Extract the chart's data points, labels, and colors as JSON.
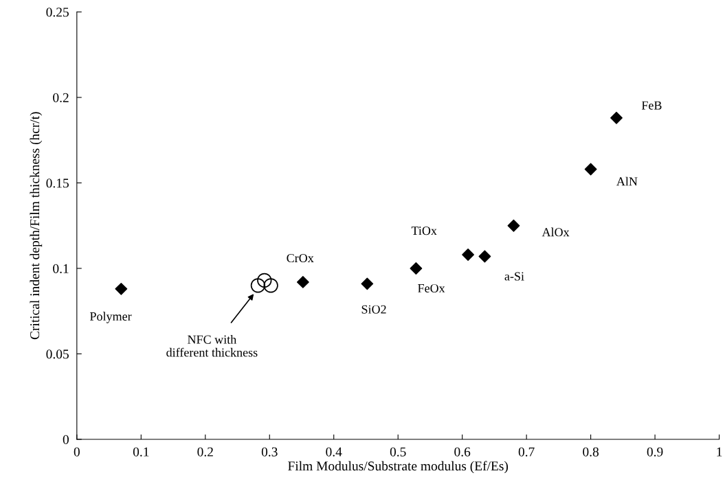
{
  "chart_data": {
    "type": "scatter",
    "xlabel": "Film Modulus/Substrate modulus (Ef/Es)",
    "ylabel": "Critical indent depth/Film thickness (hcr/t)",
    "xlim": [
      0,
      1
    ],
    "xticks": [
      0,
      0.1,
      0.2,
      0.3,
      0.4,
      0.5,
      0.6,
      0.7,
      0.8,
      0.9,
      1
    ],
    "ylim": [
      0,
      0.25
    ],
    "yticks": [
      0,
      0.05,
      0.1,
      0.15,
      0.2,
      0.25
    ],
    "grid": false,
    "legend": false,
    "series": [
      {
        "marker": "diamond",
        "color": "#000000",
        "x": [
          0.069,
          0.352,
          0.452,
          0.528,
          0.609,
          0.635,
          0.68,
          0.8,
          0.84
        ],
        "values": [
          0.088,
          0.092,
          0.091,
          0.1,
          0.108,
          0.107,
          0.125,
          0.158,
          0.188
        ]
      },
      {
        "marker": "circle",
        "color": "#000000",
        "x": [
          0.282,
          0.292,
          0.302
        ],
        "values": [
          0.09,
          0.093,
          0.09
        ]
      }
    ],
    "annotations": [
      {
        "text": "Polymer",
        "x": 0.069,
        "y": 0.088
      },
      {
        "text": "CrOx",
        "x": 0.352,
        "y": 0.092
      },
      {
        "text": "SiO2",
        "x": 0.452,
        "y": 0.091
      },
      {
        "text": "FeOx",
        "x": 0.528,
        "y": 0.1
      },
      {
        "text": "TiOx",
        "x": 0.609,
        "y": 0.108
      },
      {
        "text": "a-Si",
        "x": 0.635,
        "y": 0.107
      },
      {
        "text": "AlOx",
        "x": 0.68,
        "y": 0.125
      },
      {
        "text": "AlN",
        "x": 0.8,
        "y": 0.158
      },
      {
        "text": "FeB",
        "x": 0.84,
        "y": 0.188
      },
      "NFC with\ndifferent thickness"
    ]
  }
}
